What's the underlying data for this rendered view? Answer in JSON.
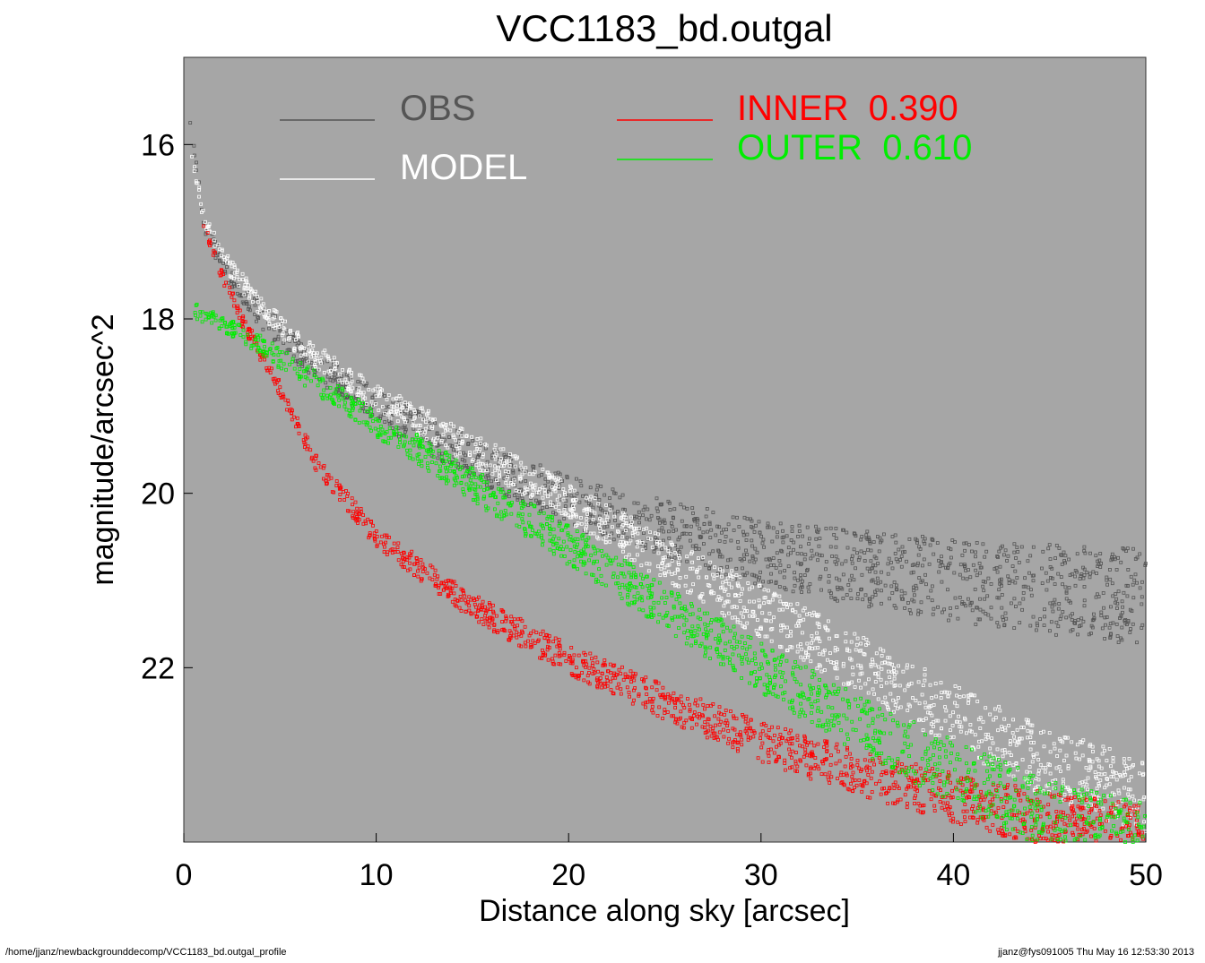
{
  "chart_data": {
    "type": "scatter",
    "title": "VCC1183_bd.outgal",
    "xlabel": "Distance along sky [arcsec]",
    "ylabel": "magnitude/arcsec^2",
    "xlim": [
      0,
      50
    ],
    "ylim": [
      24.0,
      15.0
    ],
    "y_inverted": true,
    "x_ticks": [
      0,
      10,
      20,
      30,
      40,
      50
    ],
    "y_ticks": [
      16,
      18,
      20,
      22
    ],
    "background_color": "#a6a6a6",
    "grid": false,
    "legend": [
      {
        "name": "OBS",
        "color": "#555555",
        "value": ""
      },
      {
        "name": "MODEL",
        "color": "#ffffff",
        "value": ""
      },
      {
        "name": "INNER",
        "color": "#ff0000",
        "value": "0.390"
      },
      {
        "name": "OUTER",
        "color": "#00ee00",
        "value": "0.610"
      }
    ],
    "series": [
      {
        "name": "OBS",
        "color": "#555555",
        "curve": {
          "x": [
            0.3,
            1,
            2,
            4,
            6,
            10,
            15,
            20,
            25,
            30,
            35,
            40,
            45,
            50
          ],
          "y": [
            15.7,
            16.9,
            17.4,
            17.95,
            18.4,
            19.0,
            19.6,
            20.1,
            20.4,
            20.7,
            20.85,
            21.0,
            21.1,
            21.2
          ]
        },
        "spread": 0.9
      },
      {
        "name": "MODEL",
        "color": "#ffffff",
        "curve": {
          "x": [
            0.3,
            1,
            2,
            4,
            6,
            10,
            15,
            20,
            25,
            30,
            35,
            40,
            45,
            50
          ],
          "y": [
            16.0,
            16.8,
            17.3,
            17.85,
            18.3,
            18.9,
            19.5,
            20.1,
            20.75,
            21.35,
            21.95,
            22.55,
            23.1,
            23.5
          ]
        },
        "spread": 0.7
      },
      {
        "name": "INNER",
        "color": "#ff0000",
        "curve": {
          "x": [
            1,
            2,
            3,
            5,
            7,
            10,
            15,
            20,
            25,
            30,
            35,
            40,
            45,
            50
          ],
          "y": [
            16.9,
            17.5,
            18.0,
            18.8,
            19.7,
            20.5,
            21.3,
            21.9,
            22.4,
            22.85,
            23.2,
            23.5,
            23.75,
            23.9
          ]
        },
        "spread": 0.55
      },
      {
        "name": "OUTER",
        "color": "#00ee00",
        "curve": {
          "x": [
            0.5,
            2,
            4,
            6,
            10,
            15,
            20,
            25,
            30,
            35,
            40,
            45,
            50
          ],
          "y": [
            17.9,
            18.05,
            18.3,
            18.6,
            19.2,
            19.9,
            20.6,
            21.3,
            22.0,
            22.65,
            23.2,
            23.7,
            24.0
          ]
        },
        "spread": 0.7
      }
    ]
  },
  "footer": {
    "left": "/home/jjanz/newbackgrounddecomp/VCC1183_bd.outgal_profile",
    "right": "jjanz@fys091005  Thu May 16 12:53:30 2013"
  }
}
